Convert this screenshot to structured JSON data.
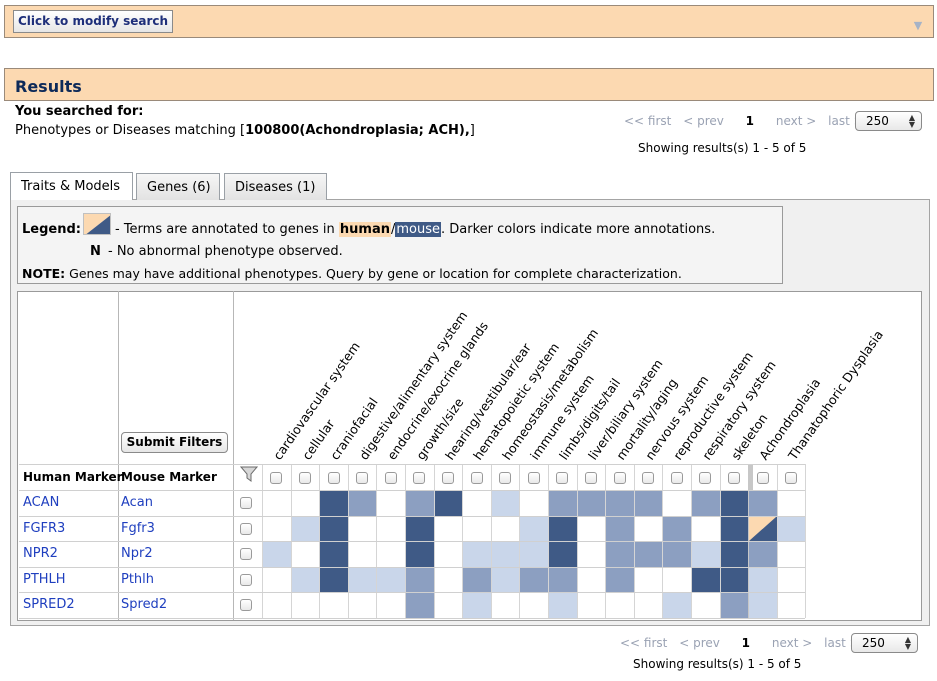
{
  "modify_search": {
    "button_label": "Click to modify search",
    "expand_icon": "chevron-down-icon"
  },
  "results": {
    "title": "Results"
  },
  "search_summary": {
    "label": "You searched for:",
    "prefix": "Phenotypes or Diseases matching [",
    "term": "100800(Achondroplasia; ACH),",
    "suffix": "]"
  },
  "pagination": {
    "first": "<< first",
    "prev": "< prev",
    "current_page": "1",
    "next": "next >",
    "last": "last >>",
    "per_page": "250",
    "showing": "Showing results(s) 1 - 5 of 5"
  },
  "tabs": [
    {
      "label": "Traits & Models",
      "active": true
    },
    {
      "label": "Genes (6)",
      "active": false
    },
    {
      "label": "Diseases (1)",
      "active": false
    }
  ],
  "legend": {
    "label": "Legend:",
    "text_prefix": "- Terms are annotated to genes in ",
    "human": "human",
    "slash": "/",
    "mouse": "mouse",
    "text_suffix": ". Darker colors indicate more annotations.",
    "n_symbol": "N",
    "n_text": "- No abnormal phenotype observed.",
    "note_label": "NOTE:",
    "note_text": "Genes may have additional phenotypes. Query by gene or location for complete characterization."
  },
  "grid": {
    "human_marker_header": "Human Marker",
    "mouse_marker_header": "Mouse Marker",
    "submit_filters_label": "Submit Filters",
    "filter_icon": "filter-funnel-icon",
    "columns": [
      "cardiovascular system",
      "cellular",
      "craniofacial",
      "digestive/alimentary system",
      "endocrine/exocrine glands",
      "growth/size",
      "hearing/vestibular/ear",
      "hematopoietic system",
      "homeostasis/metabolism",
      "immune system",
      "limbs/digits/tail",
      "liver/biliary system",
      "mortality/aging",
      "nervous system",
      "reproductive system",
      "respiratory system",
      "skeleton",
      "Achondroplasia",
      "Thanatophoric Dysplasia"
    ],
    "colors": {
      "0": "#ffffff",
      "1": "#c9d6ea",
      "2": "#8c9fc1",
      "3": "#3f5a86",
      "human": "#fcd9b1"
    },
    "rows": [
      {
        "human": "ACAN",
        "mouse": "Acan",
        "levels": [
          0,
          0,
          3,
          2,
          0,
          2,
          3,
          0,
          1,
          0,
          2,
          2,
          2,
          2,
          0,
          2,
          3,
          2,
          0
        ],
        "human_flags": []
      },
      {
        "human": "FGFR3",
        "mouse": "Fgfr3",
        "levels": [
          0,
          1,
          3,
          0,
          0,
          3,
          0,
          0,
          0,
          1,
          3,
          0,
          2,
          0,
          2,
          0,
          3,
          3,
          1
        ],
        "human_flags": [
          17
        ]
      },
      {
        "human": "NPR2",
        "mouse": "Npr2",
        "levels": [
          1,
          0,
          3,
          0,
          0,
          3,
          0,
          1,
          1,
          1,
          3,
          0,
          2,
          2,
          2,
          1,
          3,
          2,
          0
        ],
        "human_flags": []
      },
      {
        "human": "PTHLH",
        "mouse": "Pthlh",
        "levels": [
          0,
          1,
          3,
          1,
          1,
          2,
          0,
          2,
          1,
          2,
          2,
          0,
          2,
          0,
          0,
          3,
          3,
          1,
          0
        ],
        "human_flags": []
      },
      {
        "human": "SPRED2",
        "mouse": "Spred2",
        "levels": [
          0,
          0,
          0,
          0,
          0,
          2,
          0,
          1,
          0,
          0,
          1,
          0,
          0,
          0,
          1,
          0,
          2,
          1,
          0
        ],
        "human_flags": []
      }
    ]
  }
}
